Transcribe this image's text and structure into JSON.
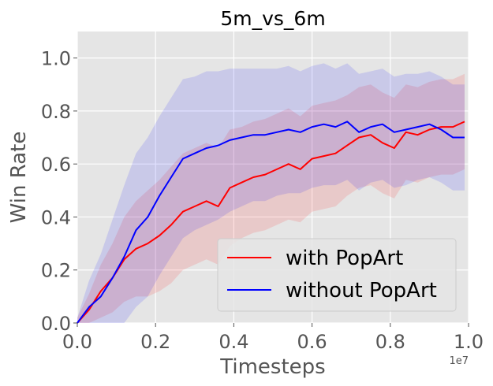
{
  "chart_data": {
    "type": "line",
    "title": "5m_vs_6m",
    "xlabel": "Timesteps",
    "ylabel": "Win Rate",
    "x_offset_label": "1e7",
    "xlim": [
      0,
      1.0
    ],
    "ylim": [
      0,
      1.1
    ],
    "xticks": [
      "0.0",
      "0.2",
      "0.4",
      "0.6",
      "0.8",
      "1.0"
    ],
    "yticks": [
      "0.0",
      "0.2",
      "0.4",
      "0.6",
      "0.8",
      "1.0"
    ],
    "grid": true,
    "legend_position": "lower-right",
    "background_color": "#e5e5e5",
    "series": [
      {
        "name": "with PopArt",
        "color": "#ff0000",
        "x": [
          0.0,
          0.03,
          0.06,
          0.09,
          0.12,
          0.15,
          0.18,
          0.21,
          0.24,
          0.27,
          0.3,
          0.33,
          0.36,
          0.39,
          0.42,
          0.45,
          0.48,
          0.51,
          0.54,
          0.57,
          0.6,
          0.63,
          0.66,
          0.69,
          0.72,
          0.75,
          0.78,
          0.81,
          0.84,
          0.87,
          0.9,
          0.93,
          0.96,
          0.99
        ],
        "y": [
          0.0,
          0.05,
          0.12,
          0.17,
          0.24,
          0.28,
          0.3,
          0.33,
          0.37,
          0.42,
          0.44,
          0.46,
          0.44,
          0.51,
          0.53,
          0.55,
          0.56,
          0.58,
          0.6,
          0.58,
          0.62,
          0.63,
          0.64,
          0.67,
          0.7,
          0.71,
          0.68,
          0.66,
          0.72,
          0.71,
          0.73,
          0.74,
          0.74,
          0.76
        ],
        "band": [
          0.02,
          0.06,
          0.1,
          0.13,
          0.16,
          0.18,
          0.2,
          0.21,
          0.22,
          0.22,
          0.22,
          0.22,
          0.22,
          0.22,
          0.21,
          0.21,
          0.21,
          0.21,
          0.21,
          0.2,
          0.2,
          0.2,
          0.2,
          0.19,
          0.19,
          0.19,
          0.19,
          0.19,
          0.18,
          0.18,
          0.18,
          0.18,
          0.18,
          0.18
        ]
      },
      {
        "name": "without PopArt",
        "color": "#0000ff",
        "x": [
          0.0,
          0.03,
          0.06,
          0.09,
          0.12,
          0.15,
          0.18,
          0.21,
          0.24,
          0.27,
          0.3,
          0.33,
          0.36,
          0.39,
          0.42,
          0.45,
          0.48,
          0.51,
          0.54,
          0.57,
          0.6,
          0.63,
          0.66,
          0.69,
          0.72,
          0.75,
          0.78,
          0.81,
          0.84,
          0.87,
          0.9,
          0.93,
          0.96,
          0.99
        ],
        "y": [
          0.0,
          0.06,
          0.1,
          0.17,
          0.25,
          0.35,
          0.4,
          0.48,
          0.55,
          0.62,
          0.64,
          0.66,
          0.67,
          0.69,
          0.7,
          0.71,
          0.71,
          0.72,
          0.73,
          0.72,
          0.74,
          0.75,
          0.74,
          0.76,
          0.72,
          0.74,
          0.75,
          0.72,
          0.73,
          0.74,
          0.75,
          0.73,
          0.7,
          0.7
        ],
        "band": [
          0.02,
          0.1,
          0.16,
          0.22,
          0.27,
          0.29,
          0.3,
          0.3,
          0.3,
          0.3,
          0.29,
          0.29,
          0.28,
          0.27,
          0.26,
          0.25,
          0.25,
          0.24,
          0.24,
          0.23,
          0.23,
          0.23,
          0.22,
          0.22,
          0.22,
          0.21,
          0.21,
          0.21,
          0.21,
          0.2,
          0.2,
          0.2,
          0.2,
          0.2
        ]
      }
    ]
  }
}
